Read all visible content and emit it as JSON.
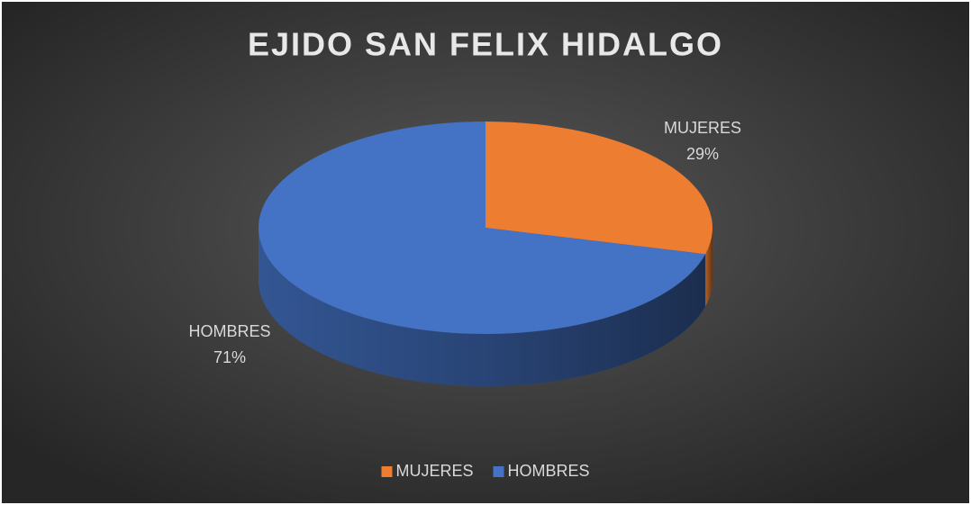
{
  "chart_data": {
    "type": "pie",
    "title": "EJIDO SAN FELIX HIDALGO",
    "categories": [
      "MUJERES",
      "HOMBRES"
    ],
    "values": [
      29,
      71
    ],
    "value_labels": [
      "29%",
      "71%"
    ],
    "colors": [
      "#ED7D31",
      "#4472C4"
    ],
    "legend": "bottom"
  }
}
